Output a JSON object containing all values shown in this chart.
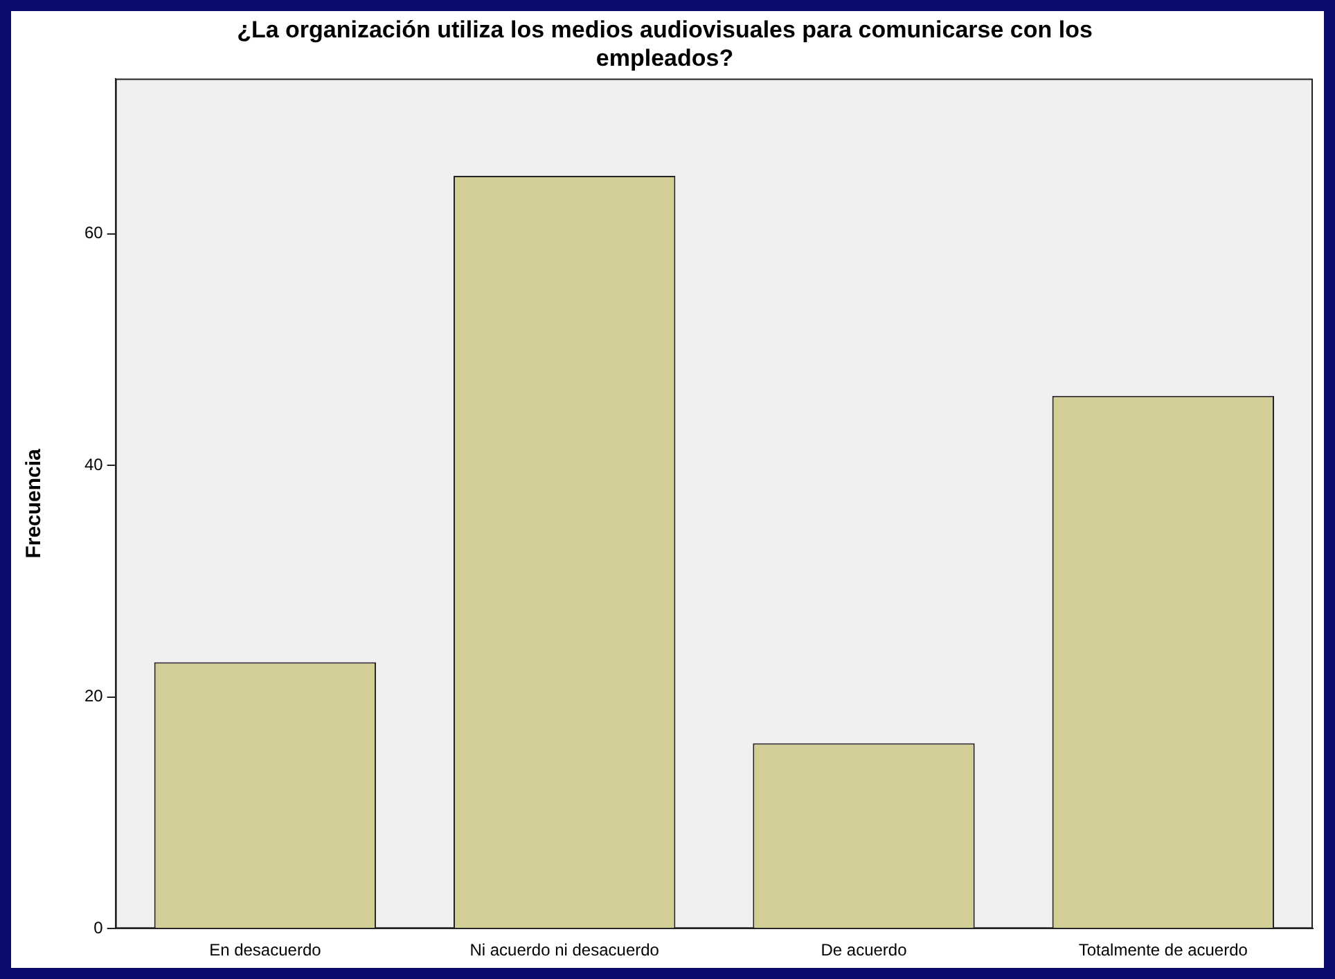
{
  "chart_data": {
    "type": "bar",
    "title": "¿La organización utiliza los medios audiovisuales para comunicarse con los empleados?",
    "ylabel": "Frecuencia",
    "categories": [
      "En desacuerdo",
      "Ni acuerdo ni desacuerdo",
      "De acuerdo",
      "Totalmente de acuerdo"
    ],
    "values": [
      23,
      65,
      16,
      46
    ],
    "color": "#d3ce97",
    "ylim": [
      0,
      73.4
    ],
    "yticks": [
      0,
      20,
      40,
      60
    ],
    "grid": false,
    "legend": false
  }
}
